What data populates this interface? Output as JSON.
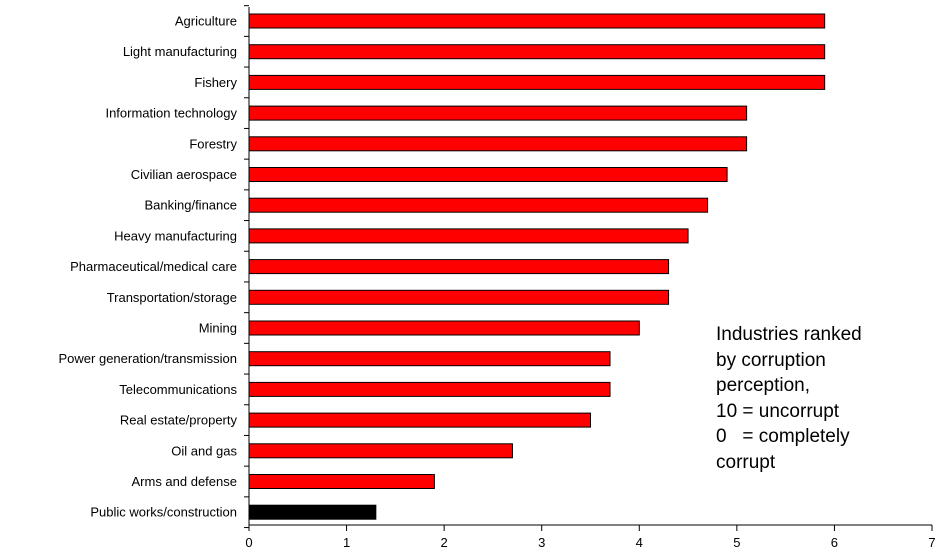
{
  "chart_data": {
    "type": "bar",
    "orientation": "horizontal",
    "categories": [
      "Agriculture",
      "Light manufacturing",
      "Fishery",
      "Information technology",
      "Forestry",
      "Civilian aerospace",
      "Banking/finance",
      "Heavy manufacturing",
      "Pharmaceutical/medical care",
      "Transportation/storage",
      "Mining",
      "Power generation/transmission",
      "Telecommunications",
      "Real estate/property",
      "Oil and gas",
      "Arms and defense",
      "Public works/construction"
    ],
    "values": [
      5.9,
      5.9,
      5.9,
      5.1,
      5.1,
      4.9,
      4.7,
      4.5,
      4.3,
      4.3,
      4.0,
      3.7,
      3.7,
      3.5,
      2.7,
      1.9,
      1.3
    ],
    "highlight_index": 16,
    "xlim": [
      0,
      7
    ],
    "xticks": [
      "0",
      "1",
      "2",
      "3",
      "4",
      "5",
      "6",
      "7"
    ],
    "title": "",
    "xlabel": "",
    "ylabel": "",
    "grid": false,
    "colors": {
      "bar": "#ff0000",
      "highlight": "#000000",
      "stroke": "#000000"
    },
    "annotation": [
      "Industries ranked",
      "by corruption",
      "perception,",
      "10 = uncorrupt",
      "0   = completely",
      "corrupt"
    ]
  }
}
